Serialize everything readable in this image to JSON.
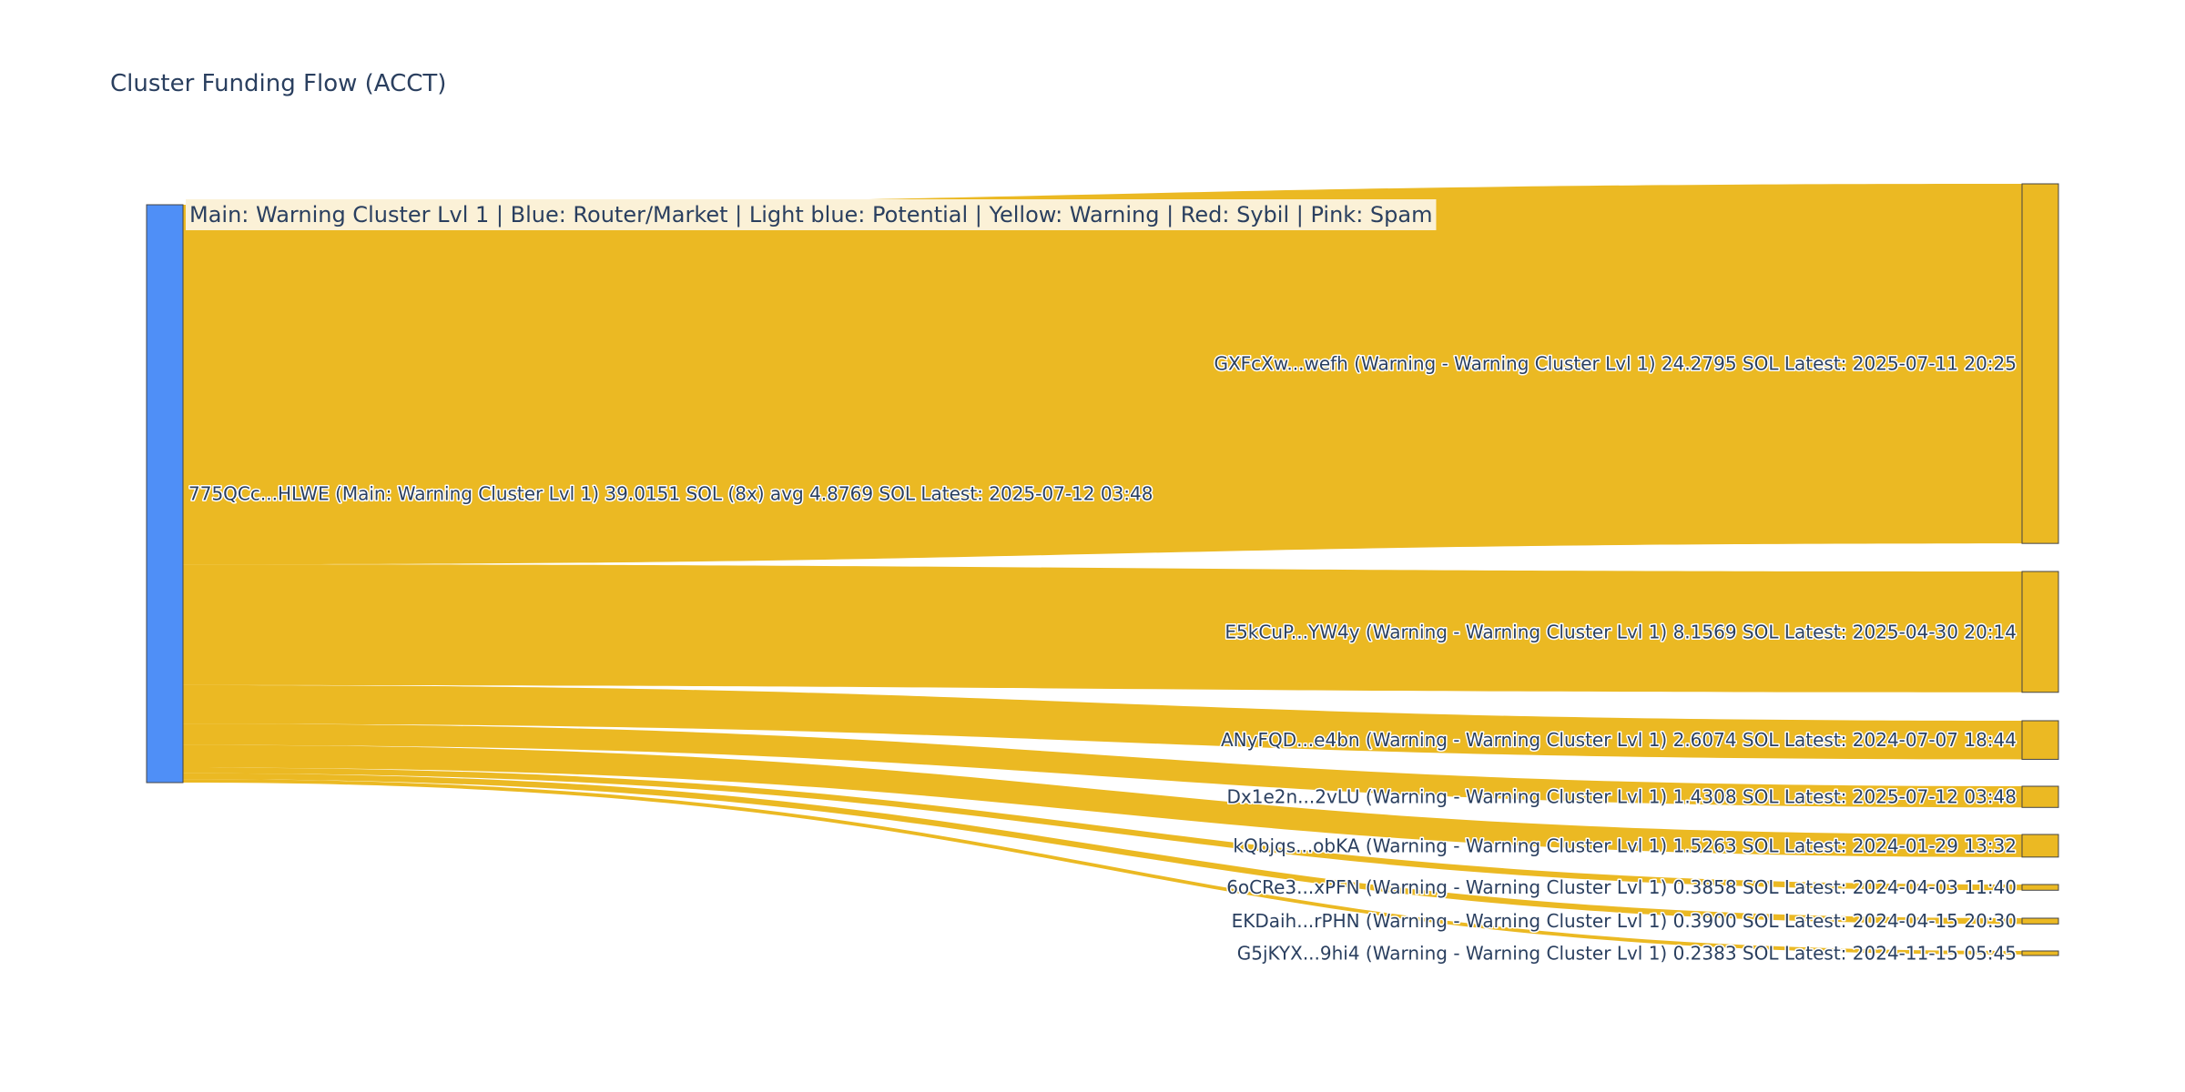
{
  "chart_data": {
    "type": "sankey",
    "title": "Cluster Funding Flow (ACCT)",
    "legend_text": "Main: Warning Cluster Lvl 1  |  Blue: Router/Market | Light blue: Potential | Yellow: Warning | Red: Sybil | Pink: Spam",
    "colors": {
      "source_node": "#4f8ff7",
      "target_node": "#ebb923",
      "link": "#ebb923",
      "node_border": "#444444",
      "legend_bg": "#fbf1d7"
    },
    "source": {
      "label": "775QCc...HLWE (Main: Warning Cluster Lvl 1) 39.0151 SOL (8x) avg 4.8769 SOL Latest: 2025-07-12 03:48",
      "value": 39.0151
    },
    "targets": [
      {
        "label": "GXFcXw...wefh (Warning - Warning Cluster Lvl 1) 24.2795 SOL Latest: 2025-07-11 20:25",
        "value": 24.2795
      },
      {
        "label": "E5kCuP...YW4y (Warning - Warning Cluster Lvl 1) 8.1569 SOL Latest: 2025-04-30 20:14",
        "value": 8.1569
      },
      {
        "label": "ANyFQD...e4bn (Warning - Warning Cluster Lvl 1) 2.6074 SOL Latest: 2024-07-07 18:44",
        "value": 2.6074
      },
      {
        "label": "Dx1e2n...2vLU (Warning - Warning Cluster Lvl 1) 1.4308 SOL Latest: 2025-07-12 03:48",
        "value": 1.4308
      },
      {
        "label": "kQbjqs...obKA (Warning - Warning Cluster Lvl 1) 1.5263 SOL Latest: 2024-01-29 13:32",
        "value": 1.5263
      },
      {
        "label": "6oCRe3...xPFN (Warning - Warning Cluster Lvl 1) 0.3858 SOL Latest: 2024-04-03 11:40",
        "value": 0.3858
      },
      {
        "label": "EKDaih...rPHN (Warning - Warning Cluster Lvl 1) 0.3900 SOL Latest: 2024-04-15 20:30",
        "value": 0.39
      },
      {
        "label": "G5jKYX...9hi4 (Warning - Warning Cluster Lvl 1) 0.2383 SOL Latest: 2024-11-15 05:45",
        "value": 0.2383
      }
    ]
  }
}
